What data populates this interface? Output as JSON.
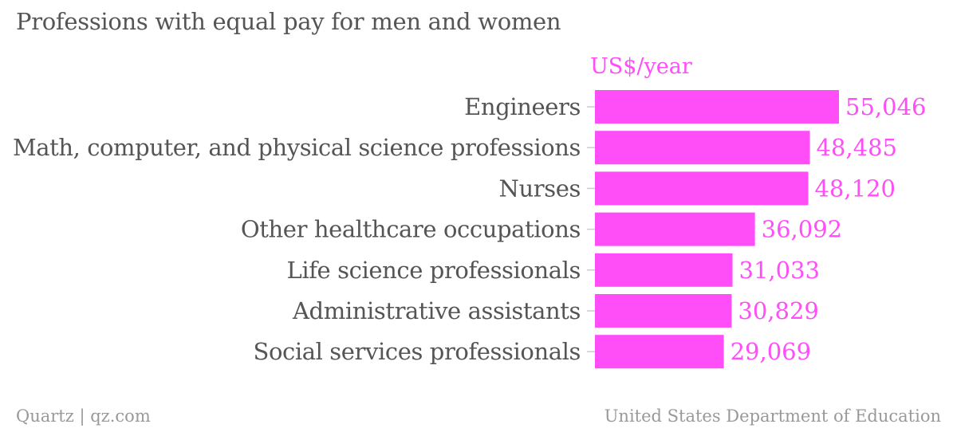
{
  "colors": {
    "bar": "#ff4df7",
    "value_label": "#ff4df7",
    "category_label": "#555555",
    "title": "#555555",
    "footer": "#999999",
    "tick": "#cccccc"
  },
  "footer": {
    "left": "Quartz | qz.com",
    "right": "United States Department of Education"
  },
  "chart_data": {
    "type": "bar",
    "orientation": "horizontal",
    "title": "Professions with equal pay for men and women",
    "unit_label": "US$/year",
    "categories": [
      "Engineers",
      "Math, computer, and physical science professions",
      "Nurses",
      "Other healthcare occupations",
      "Life science professionals",
      "Administrative assistants",
      "Social services professionals"
    ],
    "values": [
      55046,
      48485,
      48120,
      36092,
      31033,
      30829,
      29069
    ],
    "value_labels": [
      "55,046",
      "48,485",
      "48,120",
      "36,092",
      "31,033",
      "30,829",
      "29,069"
    ],
    "xlim": [
      0,
      55046
    ],
    "grid": false,
    "legend": "none"
  }
}
